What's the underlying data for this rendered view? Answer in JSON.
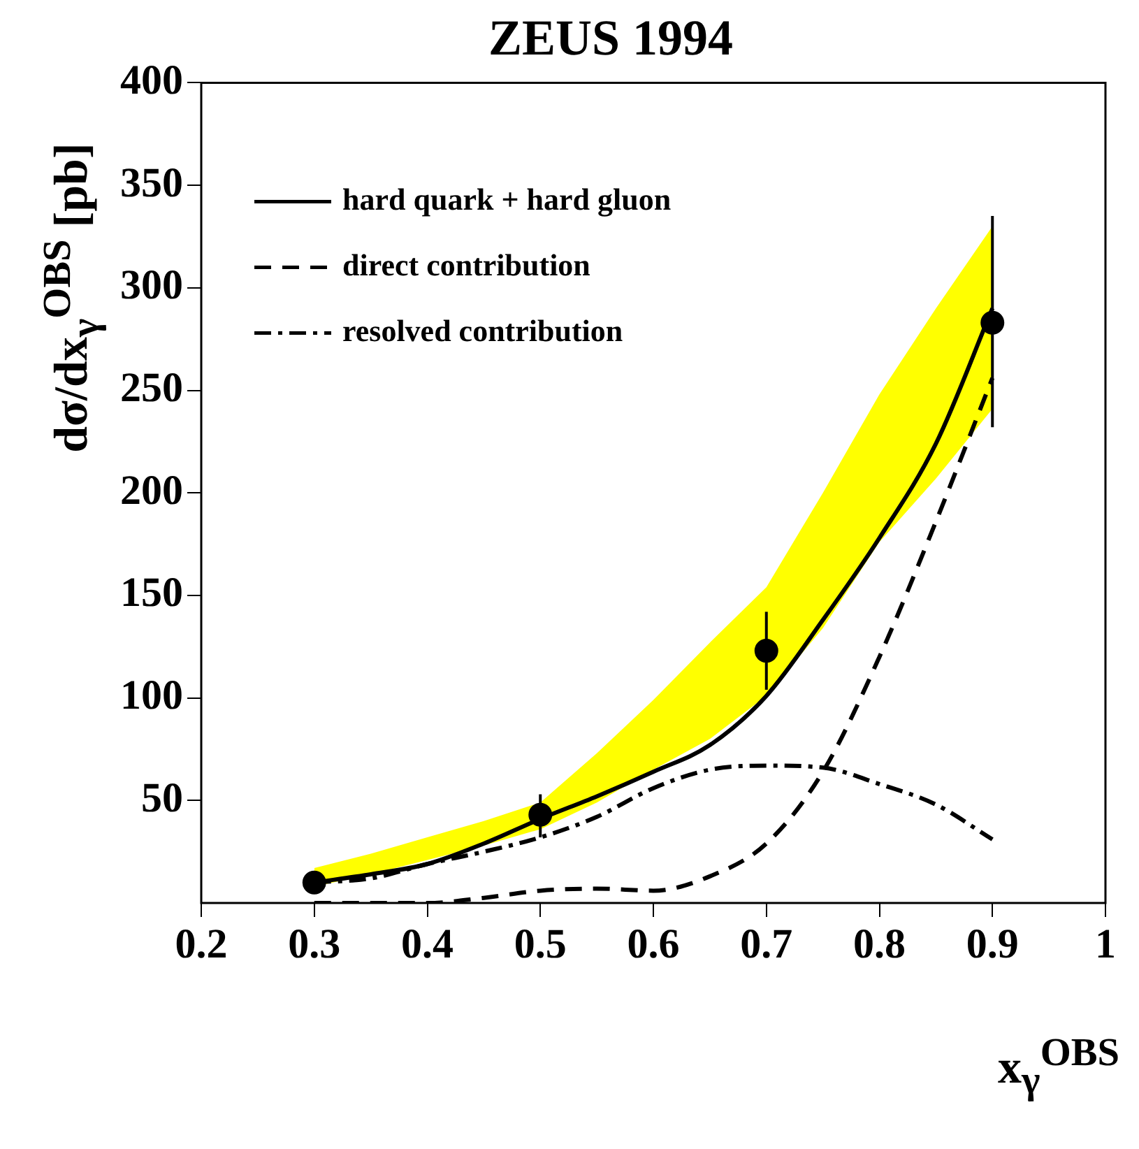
{
  "chart_data": {
    "type": "line",
    "title": "ZEUS 1994",
    "xlabel": "x$_{γ}$$^{OBS}$",
    "ylabel": "dσ/dx$_{γ}$$^{OBS}$ [pb]",
    "xlim": [
      0.2,
      1
    ],
    "xticks": [
      0.2,
      0.3,
      0.4,
      0.5,
      0.6,
      0.7,
      0.8,
      0.9,
      1
    ],
    "ylim": [
      0,
      400
    ],
    "yticks": [
      50,
      100,
      150,
      200,
      250,
      300,
      350,
      400
    ],
    "grid": false,
    "legend": "top left",
    "x": [
      0.3,
      0.35,
      0.4,
      0.45,
      0.5,
      0.55,
      0.6,
      0.65,
      0.7,
      0.75,
      0.8,
      0.85,
      0.9
    ],
    "series": [
      {
        "type": "scatter",
        "color": "#000000",
        "marker": "circle",
        "x": [
          0.3,
          0.5,
          0.7,
          0.9
        ],
        "values": [
          10,
          43,
          123,
          283
        ],
        "errors": [
          null,
          [
            32,
            53
          ],
          [
            104,
            142
          ],
          [
            232,
            335
          ]
        ]
      },
      {
        "name": "hard quark + hard gluon",
        "color": "#000000",
        "line_style": "solid",
        "values": [
          10,
          14,
          19,
          29,
          41,
          52,
          64,
          77,
          101,
          138,
          178,
          224,
          290
        ],
        "lower": [
          8,
          14,
          21,
          28,
          36,
          49,
          65,
          80,
          101,
          134,
          176,
          207,
          241
        ],
        "upper": [
          17,
          24,
          32,
          40,
          49,
          73,
          99,
          127,
          154,
          200,
          248,
          290,
          330
        ]
      },
      {
        "name": "direct contribution",
        "color": "#000000",
        "line_style": "dashed",
        "values": [
          0,
          0,
          0,
          2.5,
          6,
          7,
          6,
          13,
          29,
          64,
          120,
          186,
          256
        ]
      },
      {
        "name": "resolved contribution",
        "color": "#000000",
        "line_style": "dotted",
        "values": [
          10,
          12,
          19,
          25,
          32,
          42,
          56,
          65,
          67,
          66,
          58,
          48,
          31
        ]
      }
    ]
  }
}
